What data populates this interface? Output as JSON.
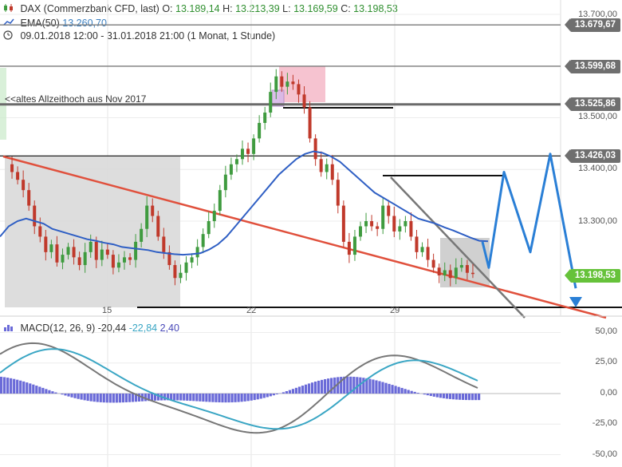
{
  "header": {
    "instrument_line": {
      "name": "DAX (Commerzbank CFD, last)",
      "o_label": "O:",
      "o_value": "13.189,14",
      "h_label": "H:",
      "h_value": "13.213,39",
      "l_label": "L:",
      "l_value": "13.169,59",
      "c_label": "C:",
      "c_value": "13.198,53"
    },
    "ema_line": {
      "label": "EMA(50)",
      "value": "13.260,70"
    },
    "period_line": {
      "range": "09.01.2018 12:00 - 31.01.2018 21:00",
      "detail": "(1 Monat, 1 Stunde)"
    },
    "macd_line": {
      "label": "MACD(12, 26, 9)",
      "macd": "-20,44",
      "signal": "-22,84",
      "hist": "2,40"
    }
  },
  "colors": {
    "up_candle": "#3f9b3f",
    "down_candle": "#c0392b",
    "ema": "#2f5fc4",
    "trend_red": "#e0503c",
    "trend_gray": "#777777",
    "projection": "#2a7fd6",
    "macd_line": "#777777",
    "signal_line": "#3aa6c4",
    "histogram": "#6a6ad8"
  },
  "price_tags": [
    {
      "label": "13.679,67",
      "style": "gray"
    },
    {
      "label": "13.599,68",
      "style": "gray"
    },
    {
      "label": "13.525,86",
      "style": "gray"
    },
    {
      "label": "13.426,03",
      "style": "gray"
    },
    {
      "label": "13.198,53",
      "style": "green"
    }
  ],
  "annotation": {
    "text": "<<altes Allzeithoch aus Nov 2017"
  },
  "chart_data": [
    {
      "type": "line",
      "subtype": "candlestick",
      "y_axis": {
        "ticks": [
          "13.700,00",
          "13.600,00",
          "13.500,00",
          "13.400,00",
          "13.300,00"
        ],
        "range": [
          13120,
          13720
        ]
      },
      "x_axis": {
        "ticks": [
          "15",
          "22",
          "29"
        ]
      },
      "ohlc_last": {
        "open": 13189.14,
        "high": 13213.39,
        "low": 13169.59,
        "close": 13198.53
      },
      "closes": [
        13410,
        13395,
        13380,
        13360,
        13330,
        13290,
        13270,
        13240,
        13255,
        13220,
        13235,
        13250,
        13230,
        13215,
        13240,
        13260,
        13225,
        13245,
        13235,
        13210,
        13220,
        13230,
        13225,
        13260,
        13285,
        13330,
        13310,
        13270,
        13240,
        13215,
        13190,
        13200,
        13220,
        13230,
        13250,
        13275,
        13300,
        13320,
        13360,
        13390,
        13410,
        13420,
        13440,
        13430,
        13460,
        13490,
        13510,
        13550,
        13580,
        13560,
        13570,
        13565,
        13545,
        13520,
        13460,
        13420,
        13395,
        13410,
        13380,
        13330,
        13260,
        13235,
        13270,
        13290,
        13300,
        13290,
        13285,
        13330,
        13310,
        13280,
        13290,
        13300,
        13270,
        13240,
        13250,
        13225,
        13210,
        13195,
        13205,
        13190,
        13210,
        13215,
        13200,
        13199
      ],
      "ema50": [
        13270,
        13290,
        13300,
        13305,
        13300,
        13295,
        13285,
        13280,
        13275,
        13270,
        13265,
        13262,
        13258,
        13255,
        13250,
        13248,
        13246,
        13244,
        13240,
        13238,
        13236,
        13235,
        13236,
        13238,
        13245,
        13255,
        13270,
        13290,
        13310,
        13330,
        13350,
        13370,
        13390,
        13405,
        13420,
        13430,
        13435,
        13432,
        13425,
        13415,
        13400,
        13385,
        13370,
        13355,
        13345,
        13335,
        13325,
        13315,
        13305,
        13300,
        13295,
        13288,
        13282,
        13275,
        13268,
        13262,
        13261
      ],
      "series": [
        {
          "name": "EMA(50)",
          "last": 13260.7
        }
      ],
      "levels": [
        13679.67,
        13599.68,
        13525.86,
        13426.03,
        13198.53
      ],
      "projection_path": [
        13260,
        13210,
        13395,
        13240,
        13430,
        13170
      ],
      "macd": {
        "y_ticks": [
          "50,00",
          "25,00",
          "0,00",
          "-25,00",
          "-50,00"
        ],
        "y_range": [
          -58,
          58
        ],
        "macd_last": -20.44,
        "signal_last": -22.84,
        "hist_last": 2.4
      }
    }
  ]
}
